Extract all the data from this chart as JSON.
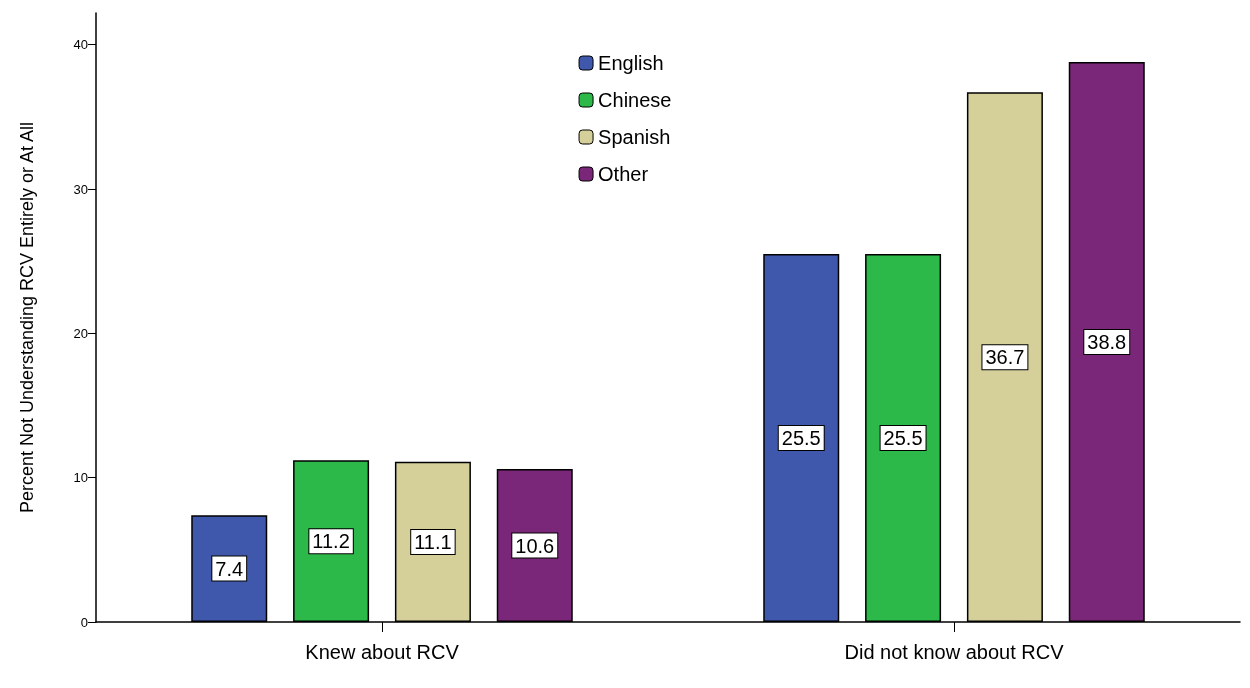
{
  "chart_data": {
    "type": "bar",
    "ylabel": "Percent Not Understanding RCV Entirely or At All",
    "categories": [
      "Knew about RCV",
      "Did not know about RCV"
    ],
    "series": [
      {
        "name": "English",
        "color": "#3f58ab",
        "values": [
          7.4,
          25.5
        ]
      },
      {
        "name": "Chinese",
        "color": "#2db84a",
        "values": [
          11.2,
          25.5
        ]
      },
      {
        "name": "Spanish",
        "color": "#d5d09a",
        "values": [
          11.1,
          36.7
        ]
      },
      {
        "name": "Other",
        "color": "#7b2779",
        "values": [
          10.6,
          38.8
        ]
      }
    ],
    "ylim": [
      0,
      42.2
    ],
    "yticks": [
      0,
      10,
      20,
      30,
      40
    ],
    "grid": false,
    "legend": "top",
    "data_labels": true
  }
}
